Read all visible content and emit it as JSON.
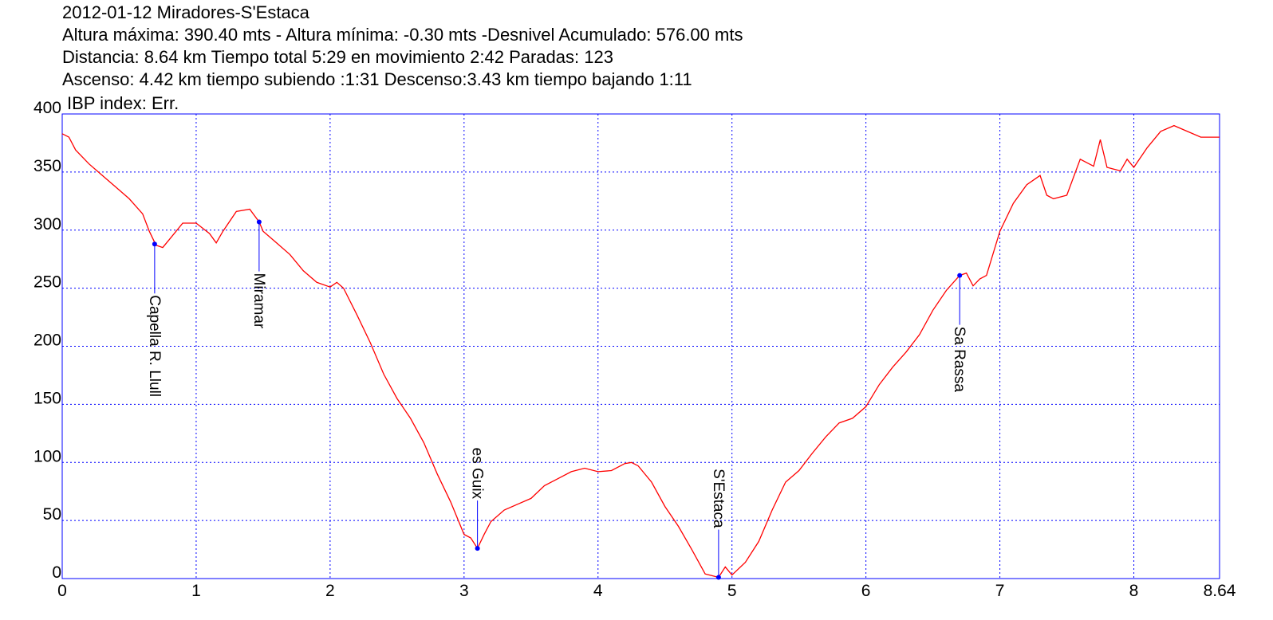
{
  "chart_data": {
    "type": "line",
    "title": "2012-01-12 Miradores-S'Estaca",
    "subtitle": [
      "Altura máxima: 390.40 mts - Altura mínima: -0.30 mts -Desnivel Acumulado: 576.00 mts",
      "Distancia: 8.64 km  Tiempo total 5:29  en movimiento 2:42 Paradas: 123",
      "Ascenso: 4.42 km  tiempo subiendo :1:31  Descenso:3.43 km tiempo bajando 1:11",
      "IBP index: Err."
    ],
    "x": [
      0,
      0.05,
      0.1,
      0.2,
      0.3,
      0.4,
      0.5,
      0.6,
      0.65,
      0.7,
      0.75,
      0.8,
      0.9,
      1.0,
      1.1,
      1.15,
      1.2,
      1.3,
      1.4,
      1.47,
      1.5,
      1.6,
      1.7,
      1.8,
      1.9,
      2.0,
      2.05,
      2.1,
      2.2,
      2.3,
      2.4,
      2.5,
      2.6,
      2.7,
      2.8,
      2.9,
      3.0,
      3.05,
      3.1,
      3.15,
      3.2,
      3.3,
      3.4,
      3.5,
      3.6,
      3.7,
      3.8,
      3.9,
      4.0,
      4.1,
      4.2,
      4.25,
      4.3,
      4.4,
      4.5,
      4.6,
      4.7,
      4.8,
      4.9,
      4.95,
      5.0,
      5.1,
      5.2,
      5.3,
      5.4,
      5.5,
      5.6,
      5.7,
      5.8,
      5.9,
      6.0,
      6.1,
      6.2,
      6.3,
      6.4,
      6.5,
      6.6,
      6.7,
      6.75,
      6.8,
      6.85,
      6.9,
      7.0,
      7.1,
      7.2,
      7.3,
      7.35,
      7.4,
      7.5,
      7.6,
      7.7,
      7.75,
      7.8,
      7.9,
      7.95,
      8.0,
      8.1,
      8.2,
      8.3,
      8.4,
      8.5,
      8.6,
      8.64
    ],
    "values": [
      383,
      380,
      369,
      357,
      347,
      337,
      327,
      314,
      299,
      287,
      285,
      292,
      306,
      306,
      297,
      289,
      299,
      316,
      318,
      307,
      299,
      289,
      279,
      265,
      255,
      251,
      255,
      250,
      227,
      203,
      176,
      155,
      138,
      117,
      90,
      66,
      38,
      35,
      26,
      38,
      49,
      59,
      64,
      69,
      80,
      86,
      92,
      95,
      92,
      93,
      99,
      100,
      97,
      83,
      62,
      45,
      25,
      4,
      1,
      10,
      3,
      14,
      32,
      59,
      83,
      93,
      108,
      122,
      134,
      138,
      148,
      167,
      182,
      195,
      210,
      231,
      248,
      261,
      263,
      252,
      258,
      261,
      299,
      323,
      339,
      347,
      330,
      327,
      330,
      361,
      355,
      378,
      354,
      351,
      361,
      354,
      371,
      385,
      390,
      385,
      380,
      380,
      380
    ],
    "color": "#ff0000",
    "waypoints": [
      {
        "name": "Capella R. Llull",
        "x": 0.69,
        "y": 288
      },
      {
        "name": "Miramar",
        "x": 1.47,
        "y": 307
      },
      {
        "name": "es Guix",
        "x": 3.1,
        "y": 26
      },
      {
        "name": "S'Estaca",
        "x": 4.9,
        "y": 1
      },
      {
        "name": "Sa Rassa",
        "x": 6.7,
        "y": 261
      }
    ],
    "waypoint_color": "#0000ff",
    "xlim": [
      0,
      8.64
    ],
    "xticks": [
      0,
      1,
      2,
      3,
      4,
      5,
      6,
      7,
      8,
      8.64
    ],
    "ylim": [
      0,
      400
    ],
    "yticks": [
      0,
      50,
      100,
      150,
      200,
      250,
      300,
      350,
      400
    ],
    "grid": true
  }
}
